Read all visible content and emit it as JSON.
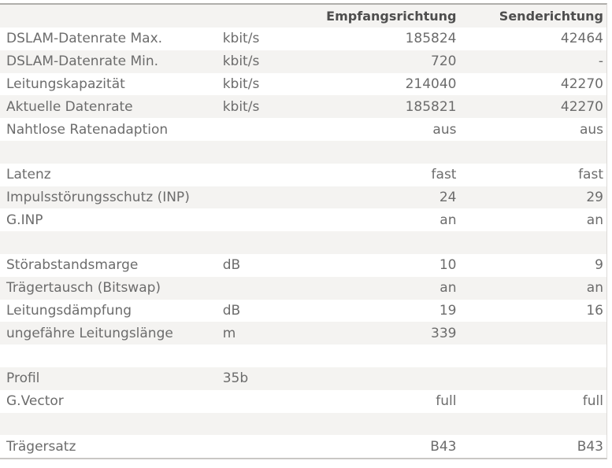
{
  "colors": {
    "row_alt_bg": "#f4f3f1",
    "row_bg": "#ffffff",
    "border_top": "#b0aeab",
    "border_bottom": "#c9c7c4",
    "border_right": "#dcdad7",
    "header_text": "#4e4e4e",
    "body_text": "#6c6c6c"
  },
  "table": {
    "header": {
      "label": "",
      "unit": "",
      "rx": "Empfangsrichtung",
      "tx": "Senderichtung"
    },
    "rows": [
      {
        "label": "DSLAM-Datenrate Max.",
        "unit": "kbit/s",
        "rx": "185824",
        "tx": "42464"
      },
      {
        "label": "DSLAM-Datenrate Min.",
        "unit": "kbit/s",
        "rx": "720",
        "tx": "-"
      },
      {
        "label": "Leitungskapazität",
        "unit": "kbit/s",
        "rx": "214040",
        "tx": "42270"
      },
      {
        "label": "Aktuelle Datenrate",
        "unit": "kbit/s",
        "rx": "185821",
        "tx": "42270"
      },
      {
        "label": "Nahtlose Ratenadaption",
        "unit": "",
        "rx": "aus",
        "tx": "aus"
      },
      {
        "label": "",
        "unit": "",
        "rx": "",
        "tx": ""
      },
      {
        "label": "Latenz",
        "unit": "",
        "rx": "fast",
        "tx": "fast"
      },
      {
        "label": "Impulsstörungsschutz (INP)",
        "unit": "",
        "rx": "24",
        "tx": "29"
      },
      {
        "label": "G.INP",
        "unit": "",
        "rx": "an",
        "tx": "an"
      },
      {
        "label": "",
        "unit": "",
        "rx": "",
        "tx": ""
      },
      {
        "label": "Störabstandsmarge",
        "unit": "dB",
        "rx": "10",
        "tx": "9"
      },
      {
        "label": "Trägertausch (Bitswap)",
        "unit": "",
        "rx": "an",
        "tx": "an"
      },
      {
        "label": "Leitungsdämpfung",
        "unit": "dB",
        "rx": "19",
        "tx": "16"
      },
      {
        "label": "ungefähre Leitungslänge",
        "unit": "m",
        "rx": "339",
        "tx": ""
      },
      {
        "label": "",
        "unit": "",
        "rx": "",
        "tx": ""
      },
      {
        "label": "Profil",
        "unit": "35b",
        "rx": "",
        "tx": ""
      },
      {
        "label": "G.Vector",
        "unit": "",
        "rx": "full",
        "tx": "full"
      },
      {
        "label": "",
        "unit": "",
        "rx": "",
        "tx": ""
      },
      {
        "label": "Trägersatz",
        "unit": "",
        "rx": "B43",
        "tx": "B43"
      }
    ]
  }
}
